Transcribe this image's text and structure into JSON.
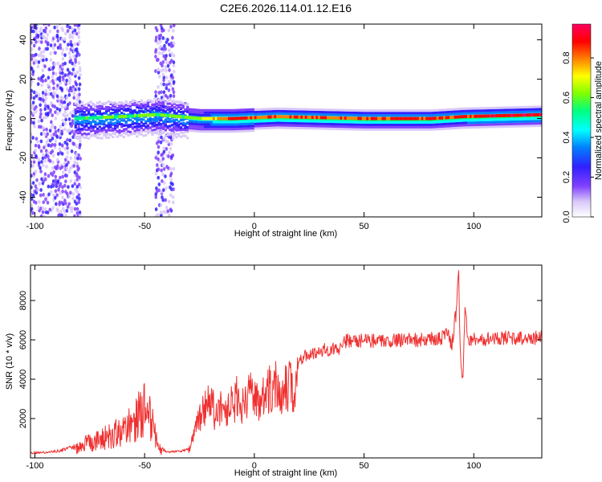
{
  "title": "C2E6.2026.114.01.12.E16",
  "colors": {
    "snr_line": "#f03030",
    "ridge_core": "#e83030",
    "colormap": [
      "#ffffff",
      "#d8c8f8",
      "#8040ff",
      "#3020ff",
      "#0080ff",
      "#00ffff",
      "#00ff80",
      "#80ff00",
      "#ffff00",
      "#ff8000",
      "#ff0000",
      "#ff0060"
    ]
  },
  "chart_data": [
    {
      "type": "heatmap",
      "xlabel": "Height of straight line (km)",
      "ylabel": "Frequency (Hz)",
      "xlim": [
        -102,
        131
      ],
      "ylim": [
        -50,
        48
      ],
      "xticks": [
        -100,
        -50,
        0,
        50,
        100
      ],
      "yticks": [
        -40,
        -20,
        0,
        20,
        40
      ],
      "colorbar": {
        "label": "Normalized spectral amplitude",
        "range": [
          0.0,
          0.97
        ],
        "ticks": [
          0.0,
          0.2,
          0.4,
          0.6,
          0.8
        ]
      },
      "description_points": {
        "noise_bands_x": [
          [
            -102,
            -80
          ],
          [
            -45,
            -37
          ]
        ],
        "ridge": [
          {
            "x": -82,
            "freq": 0,
            "amp": 0.55
          },
          {
            "x": -60,
            "freq": 1,
            "amp": 0.6
          },
          {
            "x": -45,
            "freq": 2,
            "amp": 0.6
          },
          {
            "x": -25,
            "freq": 0,
            "amp": 0.65
          },
          {
            "x": -10,
            "freq": 0,
            "amp": 0.9
          },
          {
            "x": 10,
            "freq": 1,
            "amp": 0.85
          },
          {
            "x": 50,
            "freq": 0,
            "amp": 0.85
          },
          {
            "x": 80,
            "freq": 0,
            "amp": 0.9
          },
          {
            "x": 95,
            "freq": 1,
            "amp": 0.9
          },
          {
            "x": 131,
            "freq": 2,
            "amp": 0.95
          }
        ]
      }
    },
    {
      "type": "line",
      "xlabel": "Height of straight line (km)",
      "ylabel": "SNR (10 * v/v)",
      "xlim": [
        -102,
        131
      ],
      "ylim": [
        0,
        9800
      ],
      "xticks": [
        -100,
        -50,
        0,
        50,
        100
      ],
      "yticks": [
        2000,
        4000,
        6000,
        8000
      ],
      "series": [
        {
          "x": [
            -102,
            -95,
            -88,
            -82,
            -76,
            -70,
            -65,
            -60,
            -56,
            -52,
            -50,
            -48,
            -46,
            -44,
            -40,
            -35,
            -30,
            -27,
            -25,
            -22,
            -20,
            -18,
            -15,
            -12,
            -8,
            -5,
            -2,
            0,
            3,
            5,
            8,
            10,
            12,
            15,
            18,
            20,
            25,
            30,
            35,
            40,
            45,
            50,
            55,
            60,
            65,
            70,
            75,
            80,
            85,
            88,
            90,
            92,
            93,
            94,
            95,
            96,
            97,
            98,
            100,
            105,
            110,
            115,
            120,
            125,
            131
          ],
          "y": [
            300,
            350,
            450,
            700,
            1200,
            1600,
            1800,
            2200,
            2800,
            3500,
            4200,
            3400,
            2500,
            800,
            350,
            380,
            500,
            1800,
            2800,
            3600,
            4500,
            3000,
            3800,
            3300,
            4200,
            3500,
            4400,
            4000,
            3800,
            5000,
            4800,
            5600,
            4500,
            5200,
            5000,
            5300,
            5600,
            5800,
            5900,
            5900,
            6000,
            5950,
            5950,
            6000,
            5950,
            6000,
            6000,
            6100,
            6050,
            6300,
            5700,
            7500,
            9800,
            5000,
            3800,
            7800,
            6300,
            5900,
            6100,
            6050,
            6100,
            6100,
            6050,
            6100,
            6150
          ]
        }
      ]
    }
  ]
}
